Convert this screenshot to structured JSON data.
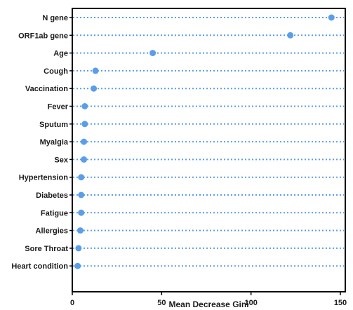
{
  "chart_data": {
    "type": "scatter",
    "categories": [
      "N gene",
      "ORF1ab gene",
      "Age",
      "Cough",
      "Vaccination",
      "Fever",
      "Sputum",
      "Myalgia",
      "Sex",
      "Hypertension",
      "Diabetes",
      "Fatigue",
      "Allergies",
      "Sore Throat",
      "Heart condition"
    ],
    "values": [
      145,
      122,
      45,
      13,
      12,
      7,
      7,
      6.5,
      6.5,
      5,
      5,
      5,
      4.5,
      3.5,
      3
    ],
    "title": "",
    "xlabel": "Mean Decrease Gini",
    "ylabel": "",
    "xlim": [
      0,
      150
    ],
    "xticks": [
      0,
      50,
      100,
      150
    ],
    "grid": false,
    "colors": {
      "point": "#5b9ee8",
      "dotted_line": "#5b9ee8",
      "axis": "#000000"
    }
  }
}
